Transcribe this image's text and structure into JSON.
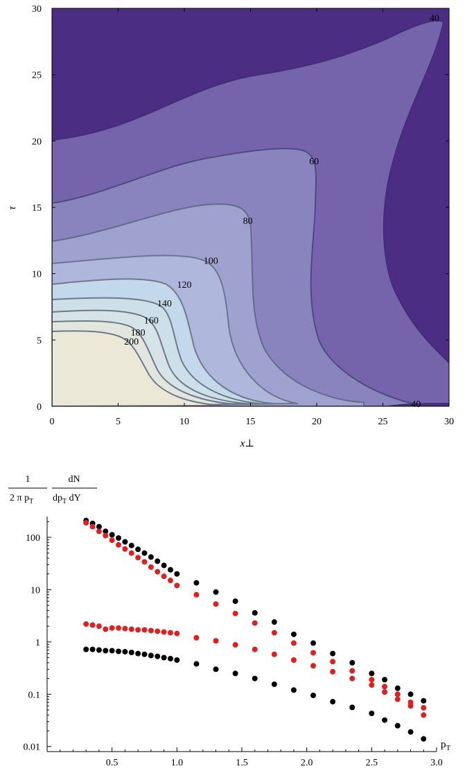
{
  "chart_data": [
    {
      "type": "contour",
      "xlabel": "x⊥",
      "ylabel": "τ",
      "xlim": [
        0,
        30
      ],
      "ylim": [
        0,
        30
      ],
      "x_ticks": [
        "0",
        "5",
        "10",
        "15",
        "20",
        "25",
        "30"
      ],
      "y_ticks": [
        "0",
        "5",
        "10",
        "15",
        "20",
        "25",
        "30"
      ],
      "contour_labels": [
        {
          "text": "200",
          "x": 6.0,
          "y": 4.9
        },
        {
          "text": "180",
          "x": 6.5,
          "y": 5.6
        },
        {
          "text": "160",
          "x": 7.5,
          "y": 6.5
        },
        {
          "text": "140",
          "x": 8.5,
          "y": 7.8
        },
        {
          "text": "120",
          "x": 10.0,
          "y": 9.2
        },
        {
          "text": "100",
          "x": 12.0,
          "y": 11.0
        },
        {
          "text": "80",
          "x": 14.8,
          "y": 14.0
        },
        {
          "text": "60",
          "x": 19.8,
          "y": 18.5
        },
        {
          "text": "40",
          "x": 28.9,
          "y": 29.3
        },
        {
          "text": "40",
          "x": 27.5,
          "y": 0.2
        }
      ],
      "colors": {
        "lt40": "#4b2d83",
        "40_60": "#7563ac",
        "60_80": "#8a84be",
        "80_100": "#9fa2cf",
        "100_120": "#b0b7dc",
        "120_140": "#c3d8ea",
        "140_160": "#cde0e9",
        "160_180": "#d6e4e7",
        "180_200": "#e1e6df",
        "gt200": "#ece8d8",
        "line": "#707888"
      }
    },
    {
      "type": "scatter",
      "ylabel_numerator_left": "1",
      "ylabel_denominator_left": "2 π p",
      "ylabel_denominator_left_sub": "T",
      "ylabel_numerator_right": "dN",
      "ylabel_denominator_right_a": "dp",
      "ylabel_denominator_right_sub": "T",
      "ylabel_denominator_right_b": " dY",
      "xlabel": "p",
      "xlabel_sub": "T",
      "y_scale": "log",
      "xlim": [
        0,
        3.0
      ],
      "ylim": [
        0.008,
        250
      ],
      "x_ticks": [
        "0.5",
        "1.0",
        "1.5",
        "2.0",
        "2.5",
        "3.0"
      ],
      "y_ticks": [
        "0.01",
        "0.1",
        "1",
        "10",
        "100"
      ],
      "series": [
        {
          "color": "#000000",
          "x": [
            0.3,
            0.35,
            0.4,
            0.45,
            0.5,
            0.55,
            0.6,
            0.65,
            0.7,
            0.75,
            0.8,
            0.85,
            0.9,
            0.95,
            1.0,
            1.15,
            1.3,
            1.45,
            1.6,
            1.75,
            1.9,
            2.05,
            2.2,
            2.35,
            2.5,
            2.6,
            2.7,
            2.8,
            2.9
          ],
          "y": [
            210,
            185,
            160,
            130,
            112,
            97,
            82,
            70,
            59,
            50,
            42,
            35,
            29,
            24,
            20,
            13.5,
            9.0,
            6.0,
            3.6,
            2.4,
            1.4,
            0.95,
            0.6,
            0.4,
            0.25,
            0.19,
            0.13,
            0.1,
            0.075
          ]
        },
        {
          "color": "#e02020",
          "x": [
            0.3,
            0.35,
            0.4,
            0.45,
            0.5,
            0.55,
            0.6,
            0.65,
            0.7,
            0.75,
            0.8,
            0.85,
            0.9,
            0.95,
            1.0,
            1.15,
            1.3,
            1.45,
            1.6,
            1.75,
            1.9,
            2.05,
            2.2,
            2.35,
            2.5,
            2.6,
            2.7,
            2.8,
            2.9
          ],
          "y": [
            190,
            160,
            130,
            108,
            88,
            72,
            60,
            50,
            41,
            34,
            27,
            22,
            18,
            15,
            12.0,
            8.0,
            5.3,
            3.5,
            2.3,
            1.5,
            0.95,
            0.62,
            0.42,
            0.28,
            0.19,
            0.14,
            0.1,
            0.07,
            0.055
          ]
        },
        {
          "color": "#e02020",
          "x": [
            0.3,
            0.35,
            0.4,
            0.45,
            0.5,
            0.55,
            0.6,
            0.65,
            0.7,
            0.75,
            0.8,
            0.85,
            0.9,
            0.95,
            1.0,
            1.15,
            1.3,
            1.45,
            1.6,
            1.75,
            1.9,
            2.05,
            2.2,
            2.35,
            2.5,
            2.6,
            2.7,
            2.8,
            2.9
          ],
          "y": [
            2.2,
            2.1,
            2.0,
            1.75,
            1.85,
            1.85,
            1.8,
            1.75,
            1.7,
            1.7,
            1.65,
            1.6,
            1.55,
            1.5,
            1.45,
            1.2,
            1.05,
            0.88,
            0.72,
            0.58,
            0.45,
            0.35,
            0.27,
            0.2,
            0.15,
            0.11,
            0.08,
            0.06,
            0.04
          ]
        },
        {
          "color": "#000000",
          "x": [
            0.3,
            0.35,
            0.4,
            0.45,
            0.5,
            0.55,
            0.6,
            0.65,
            0.7,
            0.75,
            0.8,
            0.85,
            0.9,
            0.95,
            1.0,
            1.15,
            1.3,
            1.45,
            1.6,
            1.75,
            1.9,
            2.05,
            2.2,
            2.35,
            2.5,
            2.6,
            2.7,
            2.8,
            2.9
          ],
          "y": [
            0.72,
            0.72,
            0.7,
            0.68,
            0.68,
            0.66,
            0.65,
            0.63,
            0.6,
            0.58,
            0.55,
            0.53,
            0.5,
            0.48,
            0.45,
            0.38,
            0.3,
            0.25,
            0.2,
            0.155,
            0.12,
            0.095,
            0.072,
            0.056,
            0.043,
            0.032,
            0.025,
            0.019,
            0.014
          ]
        }
      ]
    }
  ]
}
